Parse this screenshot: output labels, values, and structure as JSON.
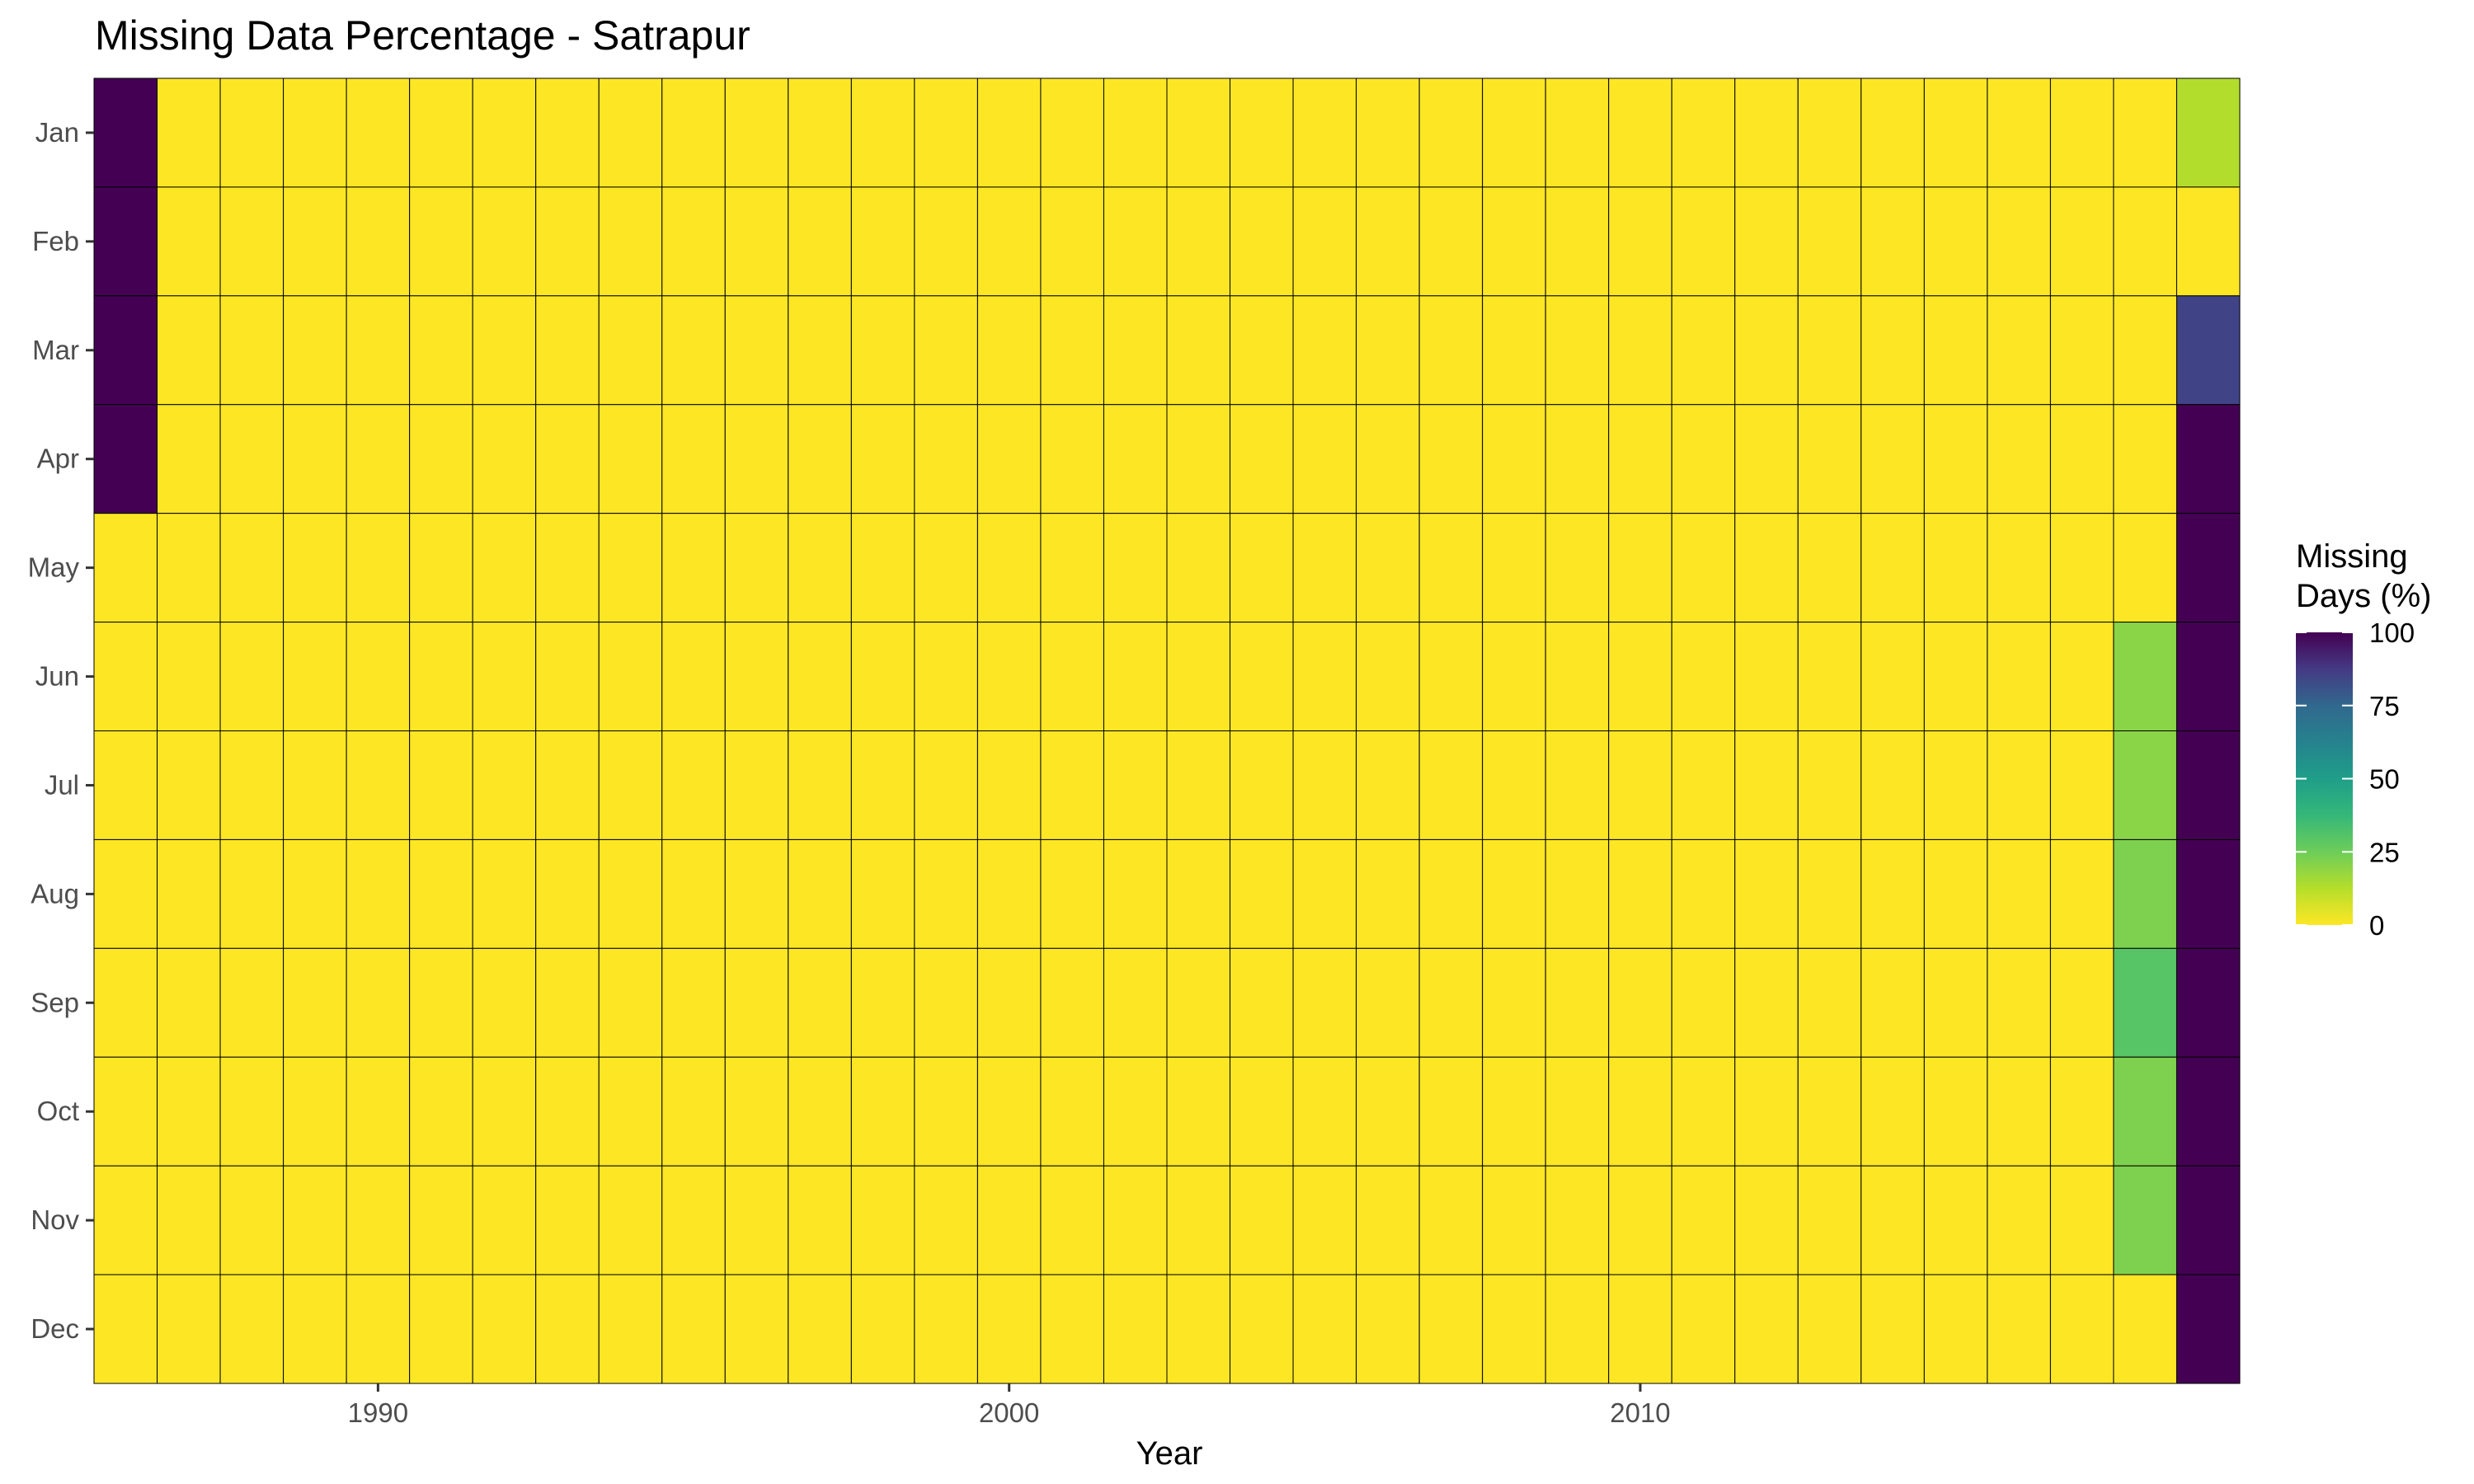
{
  "chart_data": {
    "type": "heatmap",
    "title": "Missing Data Percentage - Satrapur",
    "xlabel": "Year",
    "ylabel": "",
    "x_start_year": 1986,
    "x_end_year": 2019,
    "x_ticks": [
      1990,
      2000,
      2010
    ],
    "y_categories": [
      "Jan",
      "Feb",
      "Mar",
      "Apr",
      "May",
      "Jun",
      "Jul",
      "Aug",
      "Sep",
      "Oct",
      "Nov",
      "Dec"
    ],
    "default_value": 0,
    "nonzero_cells": [
      {
        "year": 1986,
        "month": "Jan",
        "value": 100
      },
      {
        "year": 1986,
        "month": "Feb",
        "value": 100
      },
      {
        "year": 1986,
        "month": "Mar",
        "value": 100
      },
      {
        "year": 1986,
        "month": "Apr",
        "value": 100
      },
      {
        "year": 2018,
        "month": "Jun",
        "value": 20
      },
      {
        "year": 2018,
        "month": "Jul",
        "value": 20
      },
      {
        "year": 2018,
        "month": "Aug",
        "value": 22
      },
      {
        "year": 2018,
        "month": "Sep",
        "value": 30
      },
      {
        "year": 2018,
        "month": "Oct",
        "value": 22
      },
      {
        "year": 2018,
        "month": "Nov",
        "value": 22
      },
      {
        "year": 2019,
        "month": "Jan",
        "value": 13
      },
      {
        "year": 2019,
        "month": "Mar",
        "value": 85
      },
      {
        "year": 2019,
        "month": "Apr",
        "value": 100
      },
      {
        "year": 2019,
        "month": "May",
        "value": 100
      },
      {
        "year": 2019,
        "month": "Jun",
        "value": 100
      },
      {
        "year": 2019,
        "month": "Jul",
        "value": 100
      },
      {
        "year": 2019,
        "month": "Aug",
        "value": 100
      },
      {
        "year": 2019,
        "month": "Sep",
        "value": 100
      },
      {
        "year": 2019,
        "month": "Oct",
        "value": 100
      },
      {
        "year": 2019,
        "month": "Nov",
        "value": 100
      },
      {
        "year": 2019,
        "month": "Dec",
        "value": 100
      }
    ],
    "colorscale": "viridis-reversed",
    "color_range": [
      0,
      100
    ],
    "legend": {
      "title_line1": "Missing",
      "title_line2": "Days (%)",
      "ticks": [
        100,
        75,
        50,
        25,
        0
      ],
      "placement": "right"
    },
    "grid": false
  }
}
